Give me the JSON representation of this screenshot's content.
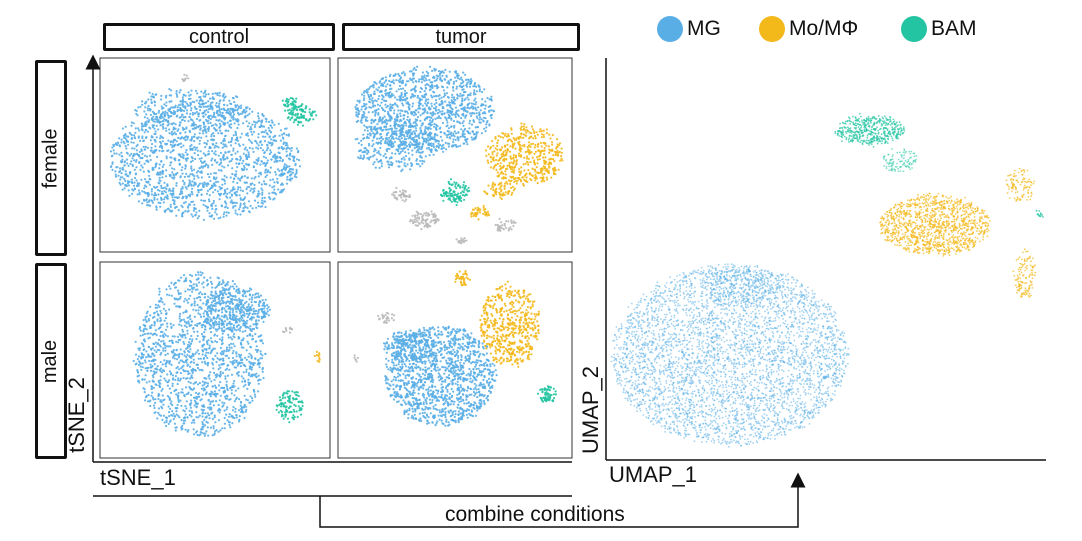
{
  "colors": {
    "mg": "#5aaee6",
    "mo": "#f3b81a",
    "bam": "#22c4a2",
    "other": "#b9b9b9"
  },
  "tsne": {
    "columns": [
      "control",
      "tumor"
    ],
    "rows": [
      "female",
      "male"
    ],
    "xlabel": "tSNE_1",
    "ylabel": "tSNE_2"
  },
  "umap": {
    "xlabel": "UMAP_1",
    "ylabel": "UMAP_2"
  },
  "legend": [
    {
      "label": "MG",
      "color": "#5aaee6"
    },
    {
      "label": "Mo/MΦ",
      "color": "#f3b81a"
    },
    {
      "label": "BAM",
      "color": "#22c4a2"
    }
  ],
  "arrow_label": "combine conditions",
  "chart_data": [
    {
      "type": "scatter",
      "title": "",
      "xlabel": "tSNE_1",
      "ylabel": "tSNE_2",
      "facets": {
        "columns": [
          "control",
          "tumor"
        ],
        "rows": [
          "female",
          "male"
        ]
      },
      "series": [
        {
          "name": "MG",
          "color": "#5aaee6"
        },
        {
          "name": "Mo/MΦ",
          "color": "#f3b81a"
        },
        {
          "name": "BAM",
          "color": "#22c4a2"
        }
      ],
      "grid": false
    },
    {
      "type": "scatter",
      "title": "",
      "xlabel": "UMAP_1",
      "ylabel": "UMAP_2",
      "series": [
        {
          "name": "MG",
          "color": "#5aaee6"
        },
        {
          "name": "Mo/MΦ",
          "color": "#f3b81a"
        },
        {
          "name": "BAM",
          "color": "#22c4a2"
        }
      ],
      "legend_position": "top",
      "grid": false
    }
  ]
}
